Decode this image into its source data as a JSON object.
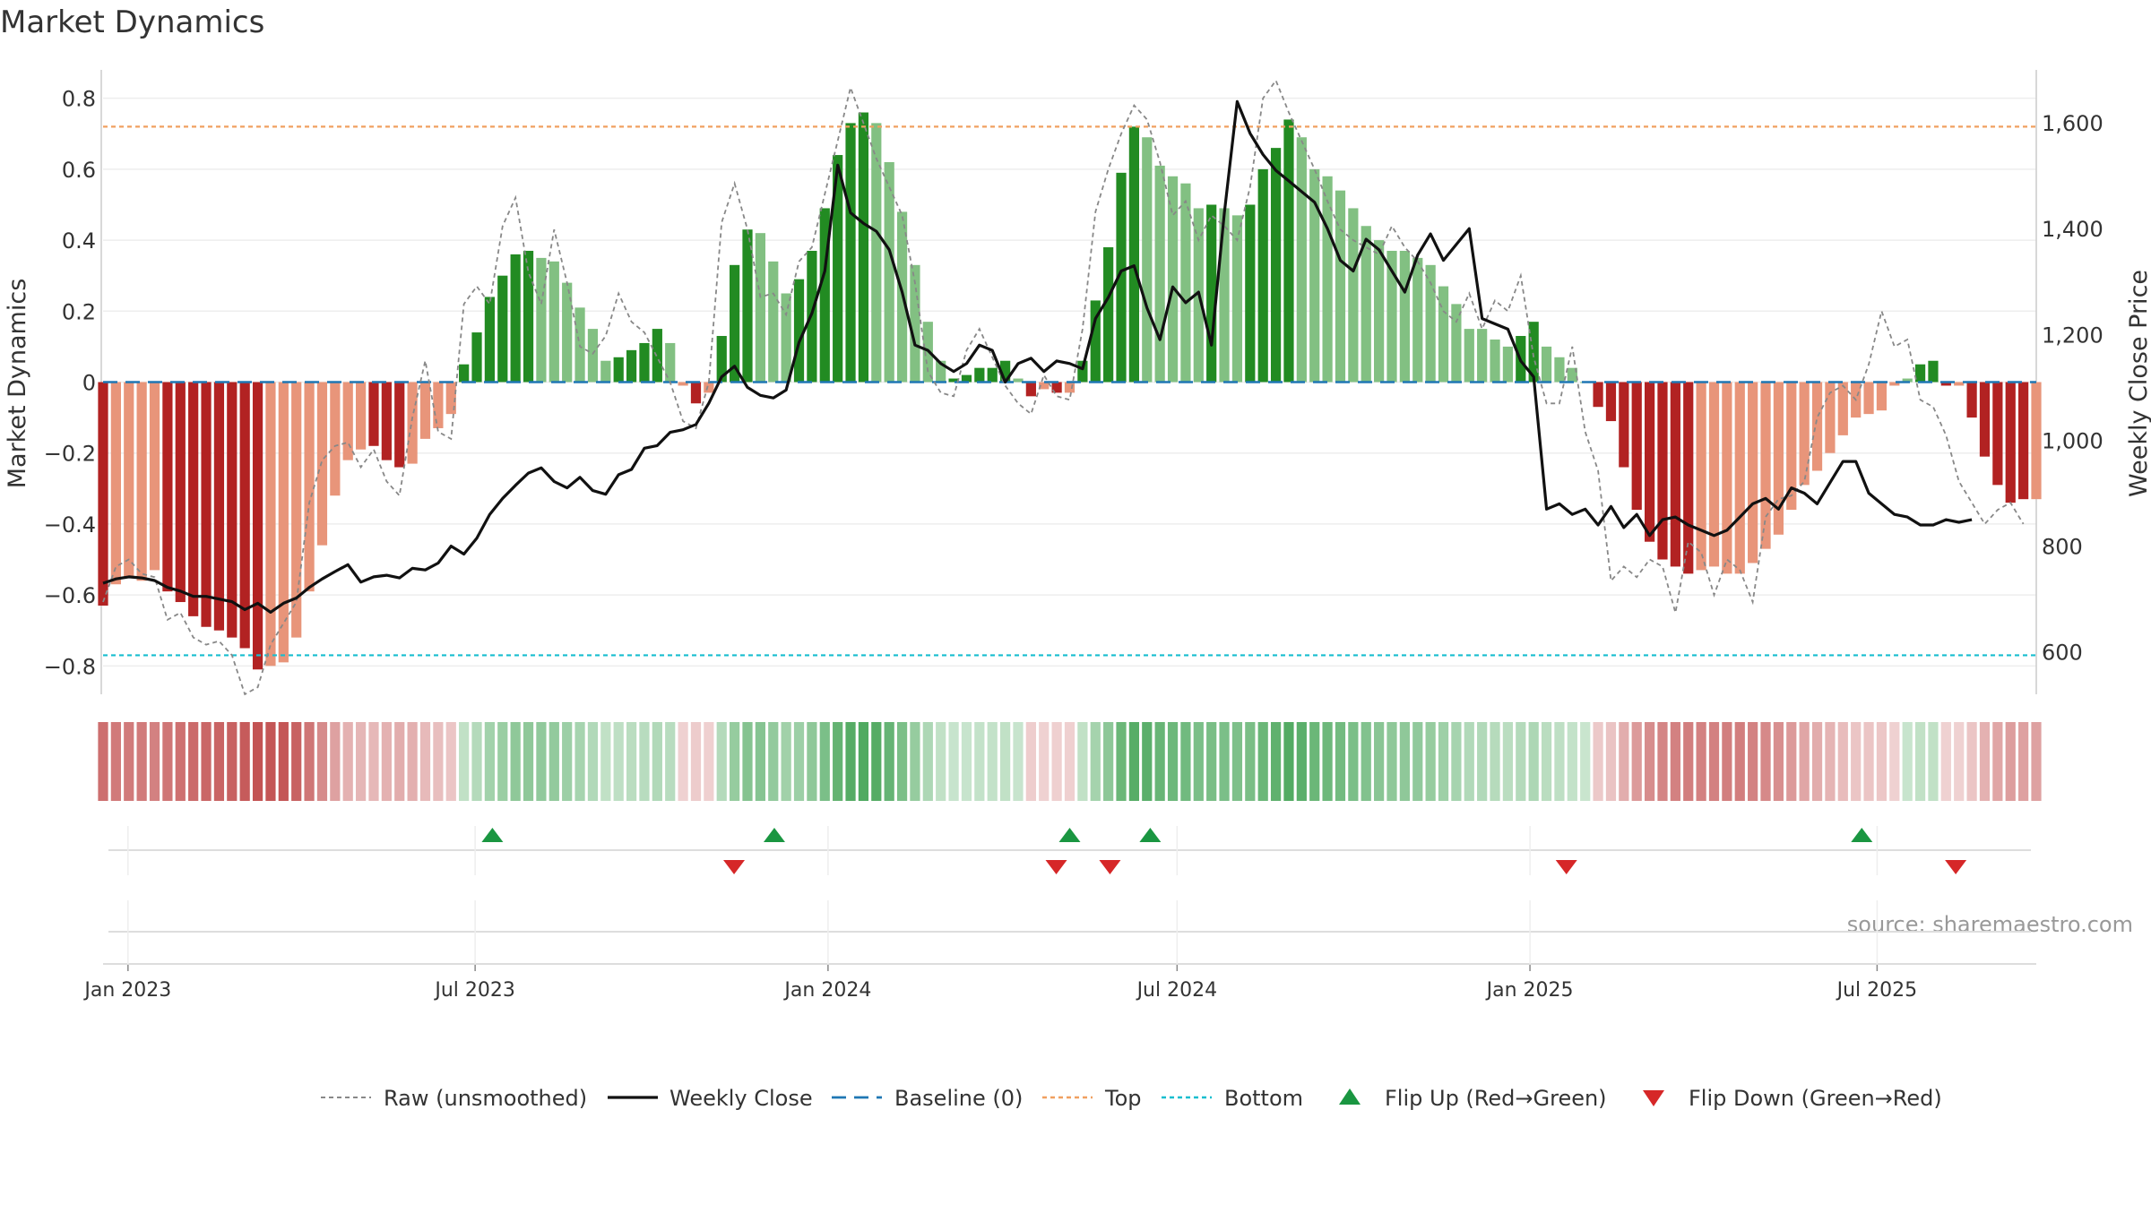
{
  "title": "Market Dynamics",
  "source": "source: sharemaestro.com",
  "colors": {
    "bar_strong_green": "#228b22",
    "bar_light_green": "#82c082",
    "bar_strong_red": "#b22222",
    "bar_light_red": "#e8957a",
    "raw_line": "#888888",
    "close_line": "#111111",
    "baseline": "#1f77b4",
    "top": "#f0a060",
    "bottom": "#17becf",
    "flip_up": "#1a9641",
    "flip_down": "#d62728"
  },
  "chart_data": {
    "type": "bar",
    "title": "Market Dynamics",
    "ylabel": "Market Dynamics",
    "ylabel_right": "Weekly Close Price",
    "ylim": [
      -0.88,
      0.88
    ],
    "ylim_right": [
      520,
      1700
    ],
    "yticks": [
      "0.8",
      "0.6",
      "0.4",
      "0.2",
      "0",
      "−0.2",
      "−0.4",
      "−0.6",
      "−0.8"
    ],
    "yticks_right": [
      "1,600",
      "1,400",
      "1,200",
      "1,000",
      "800",
      "600"
    ],
    "x_start": "2022-12-19",
    "x_end": "2025-09-22",
    "xticks": [
      "Jan 2023",
      "Jul 2023",
      "Jan 2024",
      "Jul 2024",
      "Jan 2025",
      "Jul 2025"
    ],
    "top_level": 0.72,
    "bottom_level": -0.77,
    "legend": {
      "position": "bottom-center",
      "items": [
        "Raw (unsmoothed)",
        "Weekly Close",
        "Baseline (0)",
        "Top",
        "Bottom",
        "Flip Up (Red→Green)",
        "Flip Down (Green→Red)"
      ]
    },
    "bars": [
      -0.63,
      -0.57,
      -0.55,
      -0.56,
      -0.53,
      -0.59,
      -0.62,
      -0.66,
      -0.69,
      -0.7,
      -0.72,
      -0.75,
      -0.81,
      -0.8,
      -0.79,
      -0.72,
      -0.59,
      -0.46,
      -0.32,
      -0.22,
      -0.19,
      -0.18,
      -0.22,
      -0.24,
      -0.23,
      -0.16,
      -0.13,
      -0.09,
      0.05,
      0.14,
      0.24,
      0.3,
      0.36,
      0.37,
      0.35,
      0.34,
      0.28,
      0.21,
      0.15,
      0.06,
      0.07,
      0.09,
      0.11,
      0.15,
      0.11,
      -0.01,
      -0.06,
      -0.03,
      0.13,
      0.33,
      0.43,
      0.42,
      0.34,
      0.25,
      0.29,
      0.37,
      0.49,
      0.64,
      0.73,
      0.76,
      0.73,
      0.62,
      0.48,
      0.33,
      0.17,
      0.06,
      0.01,
      0.02,
      0.04,
      0.04,
      0.06,
      0.01,
      -0.04,
      -0.02,
      -0.03,
      -0.03,
      0.06,
      0.23,
      0.38,
      0.59,
      0.72,
      0.69,
      0.61,
      0.58,
      0.56,
      0.49,
      0.5,
      0.49,
      0.47,
      0.5,
      0.6,
      0.66,
      0.74,
      0.69,
      0.6,
      0.58,
      0.54,
      0.49,
      0.44,
      0.4,
      0.37,
      0.37,
      0.35,
      0.33,
      0.27,
      0.22,
      0.15,
      0.15,
      0.12,
      0.1,
      0.13,
      0.17,
      0.1,
      0.07,
      0.04,
      0.0,
      -0.07,
      -0.11,
      -0.24,
      -0.36,
      -0.45,
      -0.5,
      -0.52,
      -0.54,
      -0.53,
      -0.52,
      -0.54,
      -0.54,
      -0.51,
      -0.47,
      -0.43,
      -0.36,
      -0.29,
      -0.25,
      -0.2,
      -0.15,
      -0.1,
      -0.09,
      -0.08,
      -0.01,
      0.01,
      0.05,
      0.06,
      -0.01,
      -0.01,
      -0.1,
      -0.21,
      -0.29,
      -0.34,
      -0.33,
      -0.33
    ],
    "bar_strength": [
      1,
      0,
      0,
      0,
      0,
      1,
      1,
      1,
      1,
      1,
      1,
      1,
      1,
      0,
      0,
      0,
      0,
      0,
      0,
      0,
      0,
      1,
      1,
      1,
      0,
      0,
      0,
      0,
      1,
      1,
      1,
      1,
      1,
      1,
      0,
      0,
      0,
      0,
      0,
      0,
      1,
      1,
      1,
      1,
      0,
      0,
      1,
      0,
      1,
      1,
      1,
      0,
      0,
      0,
      1,
      1,
      1,
      1,
      1,
      1,
      0,
      0,
      0,
      0,
      0,
      0,
      1,
      1,
      1,
      1,
      1,
      0,
      1,
      0,
      1,
      0,
      1,
      1,
      1,
      1,
      1,
      0,
      0,
      0,
      0,
      0,
      1,
      0,
      0,
      1,
      1,
      1,
      1,
      0,
      0,
      0,
      0,
      0,
      0,
      0,
      0,
      0,
      0,
      0,
      0,
      0,
      0,
      0,
      0,
      0,
      1,
      1,
      0,
      0,
      0,
      0,
      1,
      1,
      1,
      1,
      1,
      1,
      1,
      1,
      0,
      0,
      0,
      0,
      0,
      0,
      0,
      0,
      0,
      0,
      0,
      0,
      0,
      0,
      0,
      0,
      0,
      1,
      1,
      1,
      0,
      1,
      1,
      1,
      1,
      1,
      0,
      1
    ],
    "raw": [
      -0.62,
      -0.52,
      -0.5,
      -0.54,
      -0.55,
      -0.67,
      -0.65,
      -0.72,
      -0.74,
      -0.73,
      -0.77,
      -0.88,
      -0.86,
      -0.74,
      -0.68,
      -0.62,
      -0.34,
      -0.22,
      -0.18,
      -0.17,
      -0.24,
      -0.19,
      -0.28,
      -0.32,
      -0.1,
      0.06,
      -0.14,
      -0.16,
      0.22,
      0.27,
      0.22,
      0.44,
      0.52,
      0.31,
      0.22,
      0.43,
      0.28,
      0.1,
      0.08,
      0.13,
      0.25,
      0.17,
      0.14,
      0.07,
      0.0,
      -0.11,
      -0.13,
      0.0,
      0.45,
      0.56,
      0.43,
      0.24,
      0.25,
      0.19,
      0.34,
      0.38,
      0.53,
      0.68,
      0.83,
      0.73,
      0.63,
      0.55,
      0.47,
      0.28,
      0.03,
      -0.03,
      -0.04,
      0.09,
      0.15,
      0.07,
      -0.01,
      -0.06,
      -0.09,
      0.02,
      -0.04,
      -0.05,
      0.15,
      0.48,
      0.6,
      0.7,
      0.78,
      0.74,
      0.62,
      0.47,
      0.51,
      0.4,
      0.47,
      0.44,
      0.4,
      0.55,
      0.8,
      0.85,
      0.76,
      0.68,
      0.6,
      0.51,
      0.43,
      0.4,
      0.38,
      0.36,
      0.44,
      0.38,
      0.34,
      0.28,
      0.2,
      0.17,
      0.25,
      0.15,
      0.23,
      0.2,
      0.3,
      0.07,
      -0.06,
      -0.06,
      0.1,
      -0.14,
      -0.25,
      -0.56,
      -0.52,
      -0.55,
      -0.5,
      -0.52,
      -0.65,
      -0.45,
      -0.48,
      -0.6,
      -0.5,
      -0.53,
      -0.62,
      -0.38,
      -0.33,
      -0.32,
      -0.28,
      -0.1,
      -0.03,
      -0.01,
      -0.05,
      0.05,
      0.2,
      0.1,
      0.12,
      -0.05,
      -0.07,
      -0.15,
      -0.28,
      -0.34,
      -0.4,
      -0.36,
      -0.34,
      -0.4
    ],
    "close": [
      730,
      738,
      742,
      740,
      735,
      722,
      715,
      705,
      705,
      700,
      695,
      680,
      692,
      675,
      692,
      702,
      722,
      738,
      752,
      765,
      732,
      742,
      745,
      740,
      758,
      755,
      768,
      800,
      785,
      815,
      860,
      890,
      915,
      938,
      948,
      922,
      910,
      930,
      905,
      898,
      935,
      945,
      985,
      990,
      1015,
      1020,
      1030,
      1070,
      1120,
      1140,
      1100,
      1085,
      1080,
      1095,
      1185,
      1240,
      1320,
      1520,
      1430,
      1410,
      1395,
      1360,
      1280,
      1180,
      1170,
      1145,
      1130,
      1145,
      1180,
      1170,
      1110,
      1145,
      1155,
      1130,
      1150,
      1145,
      1135,
      1230,
      1270,
      1320,
      1330,
      1250,
      1190,
      1290,
      1260,
      1280,
      1180,
      1430,
      1640,
      1580,
      1540,
      1510,
      1490,
      1470,
      1450,
      1400,
      1340,
      1320,
      1380,
      1360,
      1320,
      1280,
      1350,
      1390,
      1340,
      1370,
      1400,
      1230,
      1220,
      1210,
      1150,
      1120,
      870,
      880,
      860,
      870,
      840,
      875,
      835,
      860,
      820,
      850,
      855,
      840,
      830,
      820,
      830,
      855,
      880,
      890,
      870,
      910,
      900,
      880,
      920,
      960,
      960,
      900,
      880,
      860,
      855,
      840,
      840,
      850,
      845,
      850
    ],
    "flips_up": [
      "2023-07-10",
      "2023-12-04",
      "2024-05-06",
      "2024-06-17",
      "2025-06-23"
    ],
    "flips_down": [
      "2023-11-13",
      "2024-04-29",
      "2024-05-27",
      "2025-01-20",
      "2025-08-11"
    ]
  }
}
